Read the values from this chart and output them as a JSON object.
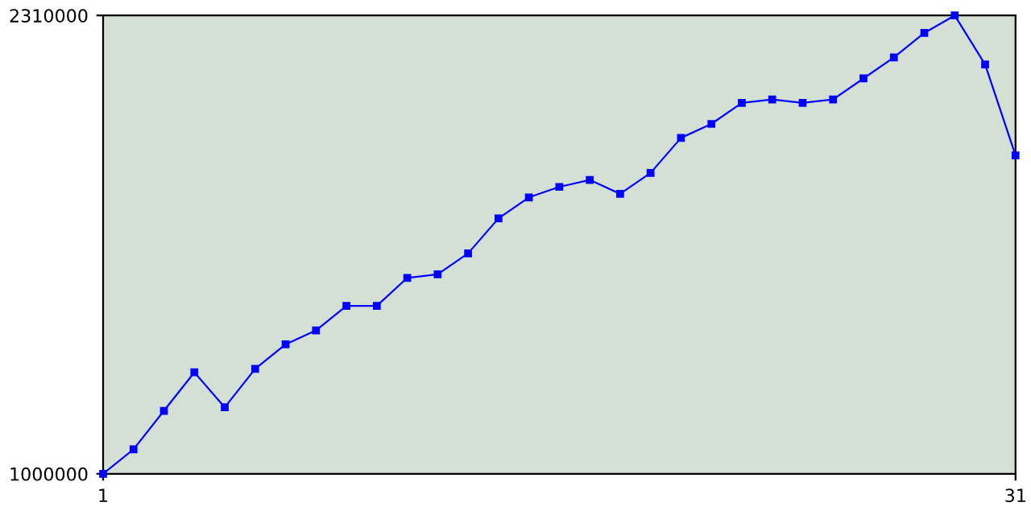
{
  "chart_data": {
    "type": "line",
    "x": [
      1,
      2,
      3,
      4,
      5,
      6,
      7,
      8,
      9,
      10,
      11,
      12,
      13,
      14,
      15,
      16,
      17,
      18,
      19,
      20,
      21,
      22,
      23,
      24,
      25,
      26,
      27,
      28,
      29,
      30,
      31
    ],
    "series": [
      {
        "color": "#0000ff",
        "values": [
          1000000,
          1070000,
          1180000,
          1290000,
          1190000,
          1300000,
          1370000,
          1410000,
          1480000,
          1480000,
          1560000,
          1570000,
          1630000,
          1730000,
          1790000,
          1820000,
          1840000,
          1800000,
          1860000,
          1960000,
          2000000,
          2060000,
          2070000,
          2060000,
          2070000,
          2130000,
          2190000,
          2260000,
          2310000,
          2170000,
          1910000
        ]
      }
    ],
    "xlim": [
      1,
      31
    ],
    "xticks": [
      1,
      31
    ],
    "ylim": [
      1000000,
      2310000
    ],
    "yticks": [
      1000000,
      2310000
    ],
    "grid": false,
    "legend": false,
    "marker": "square",
    "line_style": "solid"
  }
}
